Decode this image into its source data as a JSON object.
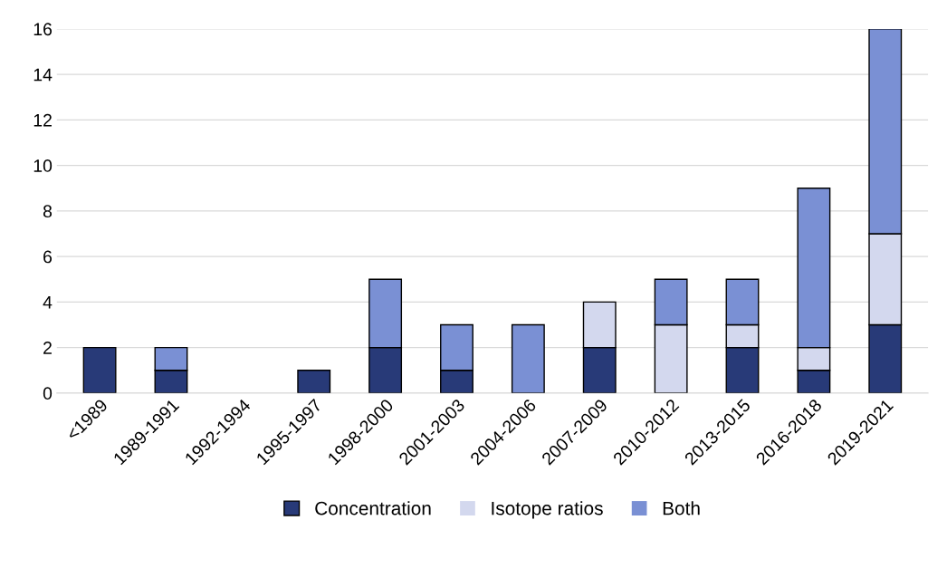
{
  "chart_data": {
    "type": "bar",
    "stacked": true,
    "categories": [
      "<1989",
      "1989-1991",
      "1992-1994",
      "1995-1997",
      "1998-2000",
      "2001-2003",
      "2004-2006",
      "2007-2009",
      "2010-2012",
      "2013-2015",
      "2016-2018",
      "2019-2021"
    ],
    "series": [
      {
        "name": "Concentration",
        "color": "#283a78",
        "values": [
          2,
          1,
          0,
          1,
          2,
          1,
          0,
          2,
          0,
          2,
          1,
          3
        ]
      },
      {
        "name": "Isotope ratios",
        "color": "#d3d8ee",
        "values": [
          0,
          0,
          0,
          0,
          0,
          0,
          0,
          2,
          3,
          1,
          1,
          4
        ]
      },
      {
        "name": "Both",
        "color": "#7a90d4",
        "values": [
          0,
          1,
          0,
          0,
          3,
          2,
          3,
          0,
          2,
          2,
          7,
          9
        ]
      }
    ],
    "ylim": [
      0,
      16
    ],
    "yticks": [
      0,
      2,
      4,
      6,
      8,
      10,
      12,
      14,
      16
    ],
    "grid": "y",
    "legend": "bottom"
  }
}
